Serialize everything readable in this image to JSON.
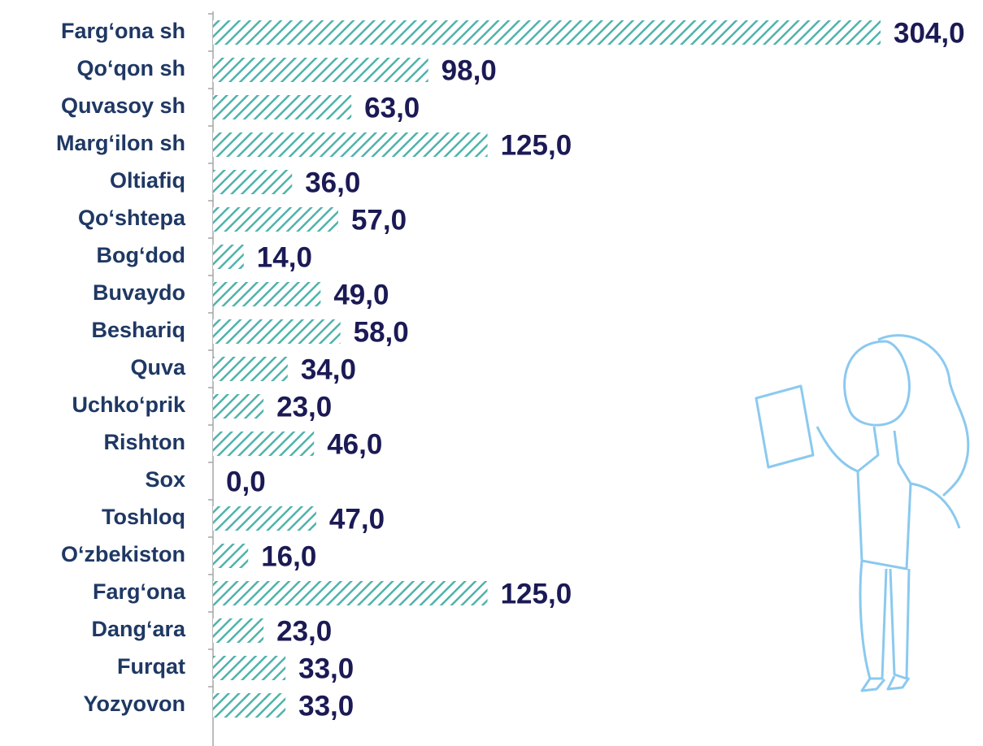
{
  "chart_data": {
    "type": "bar",
    "orientation": "horizontal",
    "color": "#4fb3ab",
    "categories": [
      "Farg‘ona sh",
      "Qo‘qon sh",
      "Quvasoy sh",
      "Marg‘ilon sh",
      "Oltiafiq",
      "Qo‘shtepa",
      "Bog‘dod",
      "Buvaydo",
      "Beshariq",
      "Quva",
      "Uchko‘prik",
      "Rishton",
      "Sox",
      "Toshloq",
      "O‘zbekiston",
      "Farg‘ona",
      "Dang‘ara",
      "Furqat",
      "Yozyovon"
    ],
    "values": [
      304,
      98,
      63,
      125,
      36,
      57,
      14,
      49,
      58,
      34,
      23,
      46,
      0,
      47,
      16,
      125,
      23,
      33,
      33
    ],
    "value_labels": [
      "304,0",
      "98,0",
      "63,0",
      "125,0",
      "36,0",
      "57,0",
      "14,0",
      "49,0",
      "58,0",
      "34,0",
      "23,0",
      "46,0",
      "0,0",
      "47,0",
      "16,0",
      "125,0",
      "23,0",
      "33,0",
      "33,0"
    ]
  }
}
